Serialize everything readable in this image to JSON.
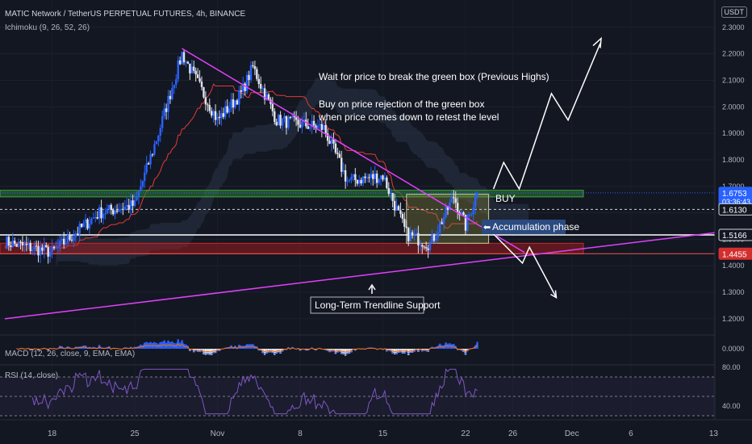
{
  "header": {
    "title": "MATIC Network / TetherUS PERPETUAL FUTURES, 4h, BINANCE",
    "indicator": "Ichimoku (9, 26, 52, 26)",
    "currency": "USDT"
  },
  "colors": {
    "background": "#131722",
    "up_candle": "#2962ff",
    "down_candle": "#e0e3eb",
    "trendline": "#e040fb",
    "resistance_zone": "#2e7d32",
    "support_zone": "#b71c1c",
    "price_label": "#2962ff",
    "stop_label": "#d32f2f",
    "annotation_box": "#2a4a80"
  },
  "price_badges": [
    {
      "value": "1.6753",
      "sub": "03:36:43",
      "kind": "current"
    },
    {
      "value": "1.6130",
      "kind": "level"
    },
    {
      "value": "1.5166",
      "kind": "level"
    },
    {
      "value": "1.4455",
      "kind": "stop"
    }
  ],
  "annotations": {
    "wait_text": "Wait for price to break the green box (Previous Highs)",
    "buy_text_1": "Buy on price rejection of the green box",
    "buy_text_2": "when price comes down to retest the level",
    "buy_label": "BUY",
    "accumulation_label": "Accumulation phase",
    "trendline_label": "Long-Term Trendline Support"
  },
  "panes": {
    "macd_label": "MACD (12, 26, close, 9, EMA, EMA)",
    "rsi_label": "RSI (14, close)"
  },
  "chart_data": [
    {
      "type": "line",
      "pane": "price",
      "x_ticks": [
        "18",
        "25",
        "Nov",
        "8",
        "15",
        "22",
        "26",
        "Dec",
        "6",
        "13"
      ],
      "y_ticks": [
        "1.2000",
        "1.3000",
        "1.4000",
        "1.5000",
        "1.6000",
        "1.7000",
        "1.8000",
        "1.9000",
        "2.0000",
        "2.1000",
        "2.2000",
        "2.3000"
      ],
      "ylim": [
        1.16,
        2.33
      ],
      "key_points": [
        {
          "x": "Oct 14",
          "y": 1.49
        },
        {
          "x": "Oct 18",
          "y": 1.45
        },
        {
          "x": "Oct 22",
          "y": 1.6
        },
        {
          "x": "Oct 25",
          "y": 1.63
        },
        {
          "x": "Oct 27",
          "y": 1.9
        },
        {
          "x": "Oct 29",
          "y": 2.2
        },
        {
          "x": "Nov 1",
          "y": 1.95
        },
        {
          "x": "Nov 3",
          "y": 2.05
        },
        {
          "x": "Nov 4",
          "y": 2.15
        },
        {
          "x": "Nov 6",
          "y": 1.95
        },
        {
          "x": "Nov 10",
          "y": 1.92
        },
        {
          "x": "Nov 12",
          "y": 1.72
        },
        {
          "x": "Nov 15",
          "y": 1.74
        },
        {
          "x": "Nov 17",
          "y": 1.52
        },
        {
          "x": "Nov 19",
          "y": 1.48
        },
        {
          "x": "Nov 21",
          "y": 1.66
        },
        {
          "x": "Nov 22",
          "y": 1.55
        },
        {
          "x": "Nov 23",
          "y": 1.6753
        }
      ],
      "levels": {
        "current": 1.6753,
        "mid": 1.613,
        "accumulation_low": 1.5166,
        "stop": 1.4455,
        "green_box": [
          1.66,
          1.685
        ],
        "red_box": [
          1.445,
          1.485
        ],
        "accumulation_box": [
          1.485,
          1.67
        ]
      }
    },
    {
      "type": "bar",
      "pane": "macd",
      "y_ticks": [
        "0.0000"
      ]
    },
    {
      "type": "line",
      "pane": "rsi",
      "y_ticks": [
        "80.00",
        "40.00"
      ],
      "ylim": [
        30,
        80
      ],
      "levels": [
        70,
        50,
        30
      ]
    }
  ]
}
